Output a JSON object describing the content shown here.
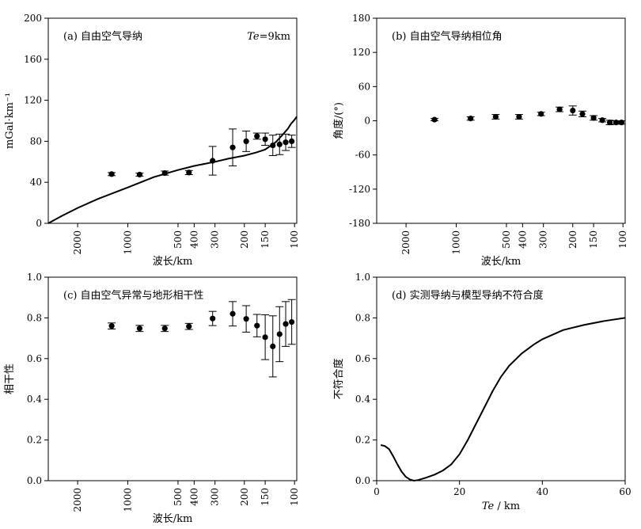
{
  "figure": {
    "layout": "2x2 panels"
  },
  "chart_data": [
    {
      "panel": "a",
      "type": "line",
      "title": "(a)  自由空气导纳",
      "annotation": {
        "prefix": "Te",
        "suffix": "=9km"
      },
      "xlabel": "波长/km",
      "ylabel": "mGal·km⁻¹",
      "xscale": "log-inverse-wavelength",
      "xlim_wavelength_km": [
        3000,
        97
      ],
      "xticks": [
        {
          "v": 2000,
          "label": "2000"
        },
        {
          "v": 1000,
          "label": "1000"
        },
        {
          "v": 500,
          "label": "500"
        },
        {
          "v": 400,
          "label": "400"
        },
        {
          "v": 300,
          "label": "300"
        },
        {
          "v": 200,
          "label": "200"
        },
        {
          "v": 150,
          "label": "150"
        },
        {
          "v": 100,
          "label": "100"
        }
      ],
      "ylim": [
        0,
        200
      ],
      "yticks": [
        0,
        40,
        80,
        120,
        160,
        200
      ],
      "points": [
        {
          "x": 1250,
          "y": 48,
          "err": 1.5
        },
        {
          "x": 850,
          "y": 47.5,
          "err": 1.5
        },
        {
          "x": 600,
          "y": 49,
          "err": 2
        },
        {
          "x": 430,
          "y": 49.5,
          "err": 2
        },
        {
          "x": 310,
          "y": 61,
          "err": 14
        },
        {
          "x": 235,
          "y": 74,
          "err": 18
        },
        {
          "x": 195,
          "y": 80,
          "err": 10
        },
        {
          "x": 168,
          "y": 85,
          "err": 3
        },
        {
          "x": 150,
          "y": 82,
          "err": 6
        },
        {
          "x": 135,
          "y": 76,
          "err": 10
        },
        {
          "x": 123,
          "y": 77,
          "err": 10
        },
        {
          "x": 113,
          "y": 79,
          "err": 8
        },
        {
          "x": 104,
          "y": 80,
          "err": 6
        }
      ],
      "model_curve": [
        {
          "x": 3000,
          "y": 0
        },
        {
          "x": 2500,
          "y": 7
        },
        {
          "x": 2000,
          "y": 15
        },
        {
          "x": 1500,
          "y": 24
        },
        {
          "x": 1000,
          "y": 35
        },
        {
          "x": 700,
          "y": 45
        },
        {
          "x": 500,
          "y": 52
        },
        {
          "x": 400,
          "y": 56
        },
        {
          "x": 300,
          "y": 60
        },
        {
          "x": 250,
          "y": 63
        },
        {
          "x": 200,
          "y": 66
        },
        {
          "x": 170,
          "y": 69
        },
        {
          "x": 150,
          "y": 72
        },
        {
          "x": 130,
          "y": 79
        },
        {
          "x": 120,
          "y": 85
        },
        {
          "x": 110,
          "y": 92
        },
        {
          "x": 105,
          "y": 97
        },
        {
          "x": 100,
          "y": 101
        },
        {
          "x": 97,
          "y": 104
        }
      ]
    },
    {
      "panel": "b",
      "type": "scatter",
      "title": "(b)  自由空气导纳相位角",
      "xlabel": "波长/km",
      "ylabel": "角度/(°)",
      "xscale": "log-inverse-wavelength",
      "xlim_wavelength_km": [
        3000,
        97
      ],
      "xticks": [
        {
          "v": 2000,
          "label": "2000"
        },
        {
          "v": 1000,
          "label": "1000"
        },
        {
          "v": 500,
          "label": "500"
        },
        {
          "v": 400,
          "label": "400"
        },
        {
          "v": 300,
          "label": "300"
        },
        {
          "v": 200,
          "label": "200"
        },
        {
          "v": 150,
          "label": "150"
        },
        {
          "v": 100,
          "label": "100"
        }
      ],
      "ylim": [
        -180,
        180
      ],
      "yticks": [
        -180,
        -120,
        -60,
        0,
        60,
        120,
        180
      ],
      "points": [
        {
          "x": 1350,
          "y": 2,
          "err": 2
        },
        {
          "x": 820,
          "y": 4,
          "err": 3
        },
        {
          "x": 580,
          "y": 7,
          "err": 4
        },
        {
          "x": 420,
          "y": 7,
          "err": 4
        },
        {
          "x": 310,
          "y": 12,
          "err": 3
        },
        {
          "x": 240,
          "y": 20,
          "err": 4
        },
        {
          "x": 200,
          "y": 18,
          "err": 8
        },
        {
          "x": 175,
          "y": 12,
          "err": 5
        },
        {
          "x": 150,
          "y": 5,
          "err": 4
        },
        {
          "x": 133,
          "y": 1,
          "err": 3
        },
        {
          "x": 120,
          "y": -3,
          "err": 4
        },
        {
          "x": 110,
          "y": -3,
          "err": 3
        },
        {
          "x": 102,
          "y": -3,
          "err": 3
        }
      ]
    },
    {
      "panel": "c",
      "type": "scatter",
      "title": "(c)  自由空气异常与地形相干性",
      "xlabel": "波长/km",
      "ylabel": "相干性",
      "xscale": "log-inverse-wavelength",
      "xlim_wavelength_km": [
        3000,
        97
      ],
      "xticks": [
        {
          "v": 2000,
          "label": "2000"
        },
        {
          "v": 1000,
          "label": "1000"
        },
        {
          "v": 500,
          "label": "500"
        },
        {
          "v": 400,
          "label": "400"
        },
        {
          "v": 300,
          "label": "300"
        },
        {
          "v": 200,
          "label": "200"
        },
        {
          "v": 150,
          "label": "150"
        },
        {
          "v": 100,
          "label": "100"
        }
      ],
      "ylim": [
        0,
        1.0
      ],
      "yticks": [
        {
          "v": 0,
          "label": "0.0"
        },
        {
          "v": 0.2,
          "label": "0.2"
        },
        {
          "v": 0.4,
          "label": "0.4"
        },
        {
          "v": 0.6,
          "label": "0.6"
        },
        {
          "v": 0.8,
          "label": "0.8"
        },
        {
          "v": 1.0,
          "label": "1.0"
        }
      ],
      "points": [
        {
          "x": 1250,
          "y": 0.76,
          "err": 0.015
        },
        {
          "x": 850,
          "y": 0.748,
          "err": 0.015
        },
        {
          "x": 600,
          "y": 0.748,
          "err": 0.015
        },
        {
          "x": 430,
          "y": 0.758,
          "err": 0.015
        },
        {
          "x": 310,
          "y": 0.797,
          "err": 0.035
        },
        {
          "x": 235,
          "y": 0.82,
          "err": 0.06
        },
        {
          "x": 195,
          "y": 0.795,
          "err": 0.065
        },
        {
          "x": 168,
          "y": 0.762,
          "err": 0.055
        },
        {
          "x": 150,
          "y": 0.705,
          "err": 0.11
        },
        {
          "x": 135,
          "y": 0.66,
          "err": 0.15
        },
        {
          "x": 123,
          "y": 0.72,
          "err": 0.135
        },
        {
          "x": 113,
          "y": 0.77,
          "err": 0.11
        },
        {
          "x": 104,
          "y": 0.78,
          "err": 0.11
        }
      ]
    },
    {
      "panel": "d",
      "type": "line",
      "title": "(d)  实测导纳与模型导纳不符合度",
      "xlabel_prefix": "Te",
      "xlabel_suffix": " / km",
      "ylabel": "不符合度",
      "xlim": [
        0,
        60
      ],
      "xticks": [
        0,
        20,
        40,
        60
      ],
      "ylim": [
        0,
        1.0
      ],
      "yticks": [
        {
          "v": 0,
          "label": "0.0"
        },
        {
          "v": 0.2,
          "label": "0.2"
        },
        {
          "v": 0.4,
          "label": "0.4"
        },
        {
          "v": 0.6,
          "label": "0.6"
        },
        {
          "v": 0.8,
          "label": "0.8"
        },
        {
          "v": 1.0,
          "label": "1.0"
        }
      ],
      "curve": [
        {
          "x": 1,
          "y": 0.175
        },
        {
          "x": 2,
          "y": 0.17
        },
        {
          "x": 3,
          "y": 0.155
        },
        {
          "x": 4,
          "y": 0.12
        },
        {
          "x": 5,
          "y": 0.08
        },
        {
          "x": 6,
          "y": 0.045
        },
        {
          "x": 7,
          "y": 0.02
        },
        {
          "x": 8,
          "y": 0.006
        },
        {
          "x": 9,
          "y": 0.0
        },
        {
          "x": 10,
          "y": 0.003
        },
        {
          "x": 12,
          "y": 0.015
        },
        {
          "x": 14,
          "y": 0.03
        },
        {
          "x": 16,
          "y": 0.05
        },
        {
          "x": 18,
          "y": 0.08
        },
        {
          "x": 20,
          "y": 0.13
        },
        {
          "x": 22,
          "y": 0.2
        },
        {
          "x": 24,
          "y": 0.28
        },
        {
          "x": 26,
          "y": 0.36
        },
        {
          "x": 28,
          "y": 0.44
        },
        {
          "x": 30,
          "y": 0.51
        },
        {
          "x": 32,
          "y": 0.565
        },
        {
          "x": 35,
          "y": 0.625
        },
        {
          "x": 38,
          "y": 0.67
        },
        {
          "x": 40,
          "y": 0.695
        },
        {
          "x": 45,
          "y": 0.74
        },
        {
          "x": 50,
          "y": 0.765
        },
        {
          "x": 55,
          "y": 0.785
        },
        {
          "x": 60,
          "y": 0.8
        }
      ]
    }
  ]
}
